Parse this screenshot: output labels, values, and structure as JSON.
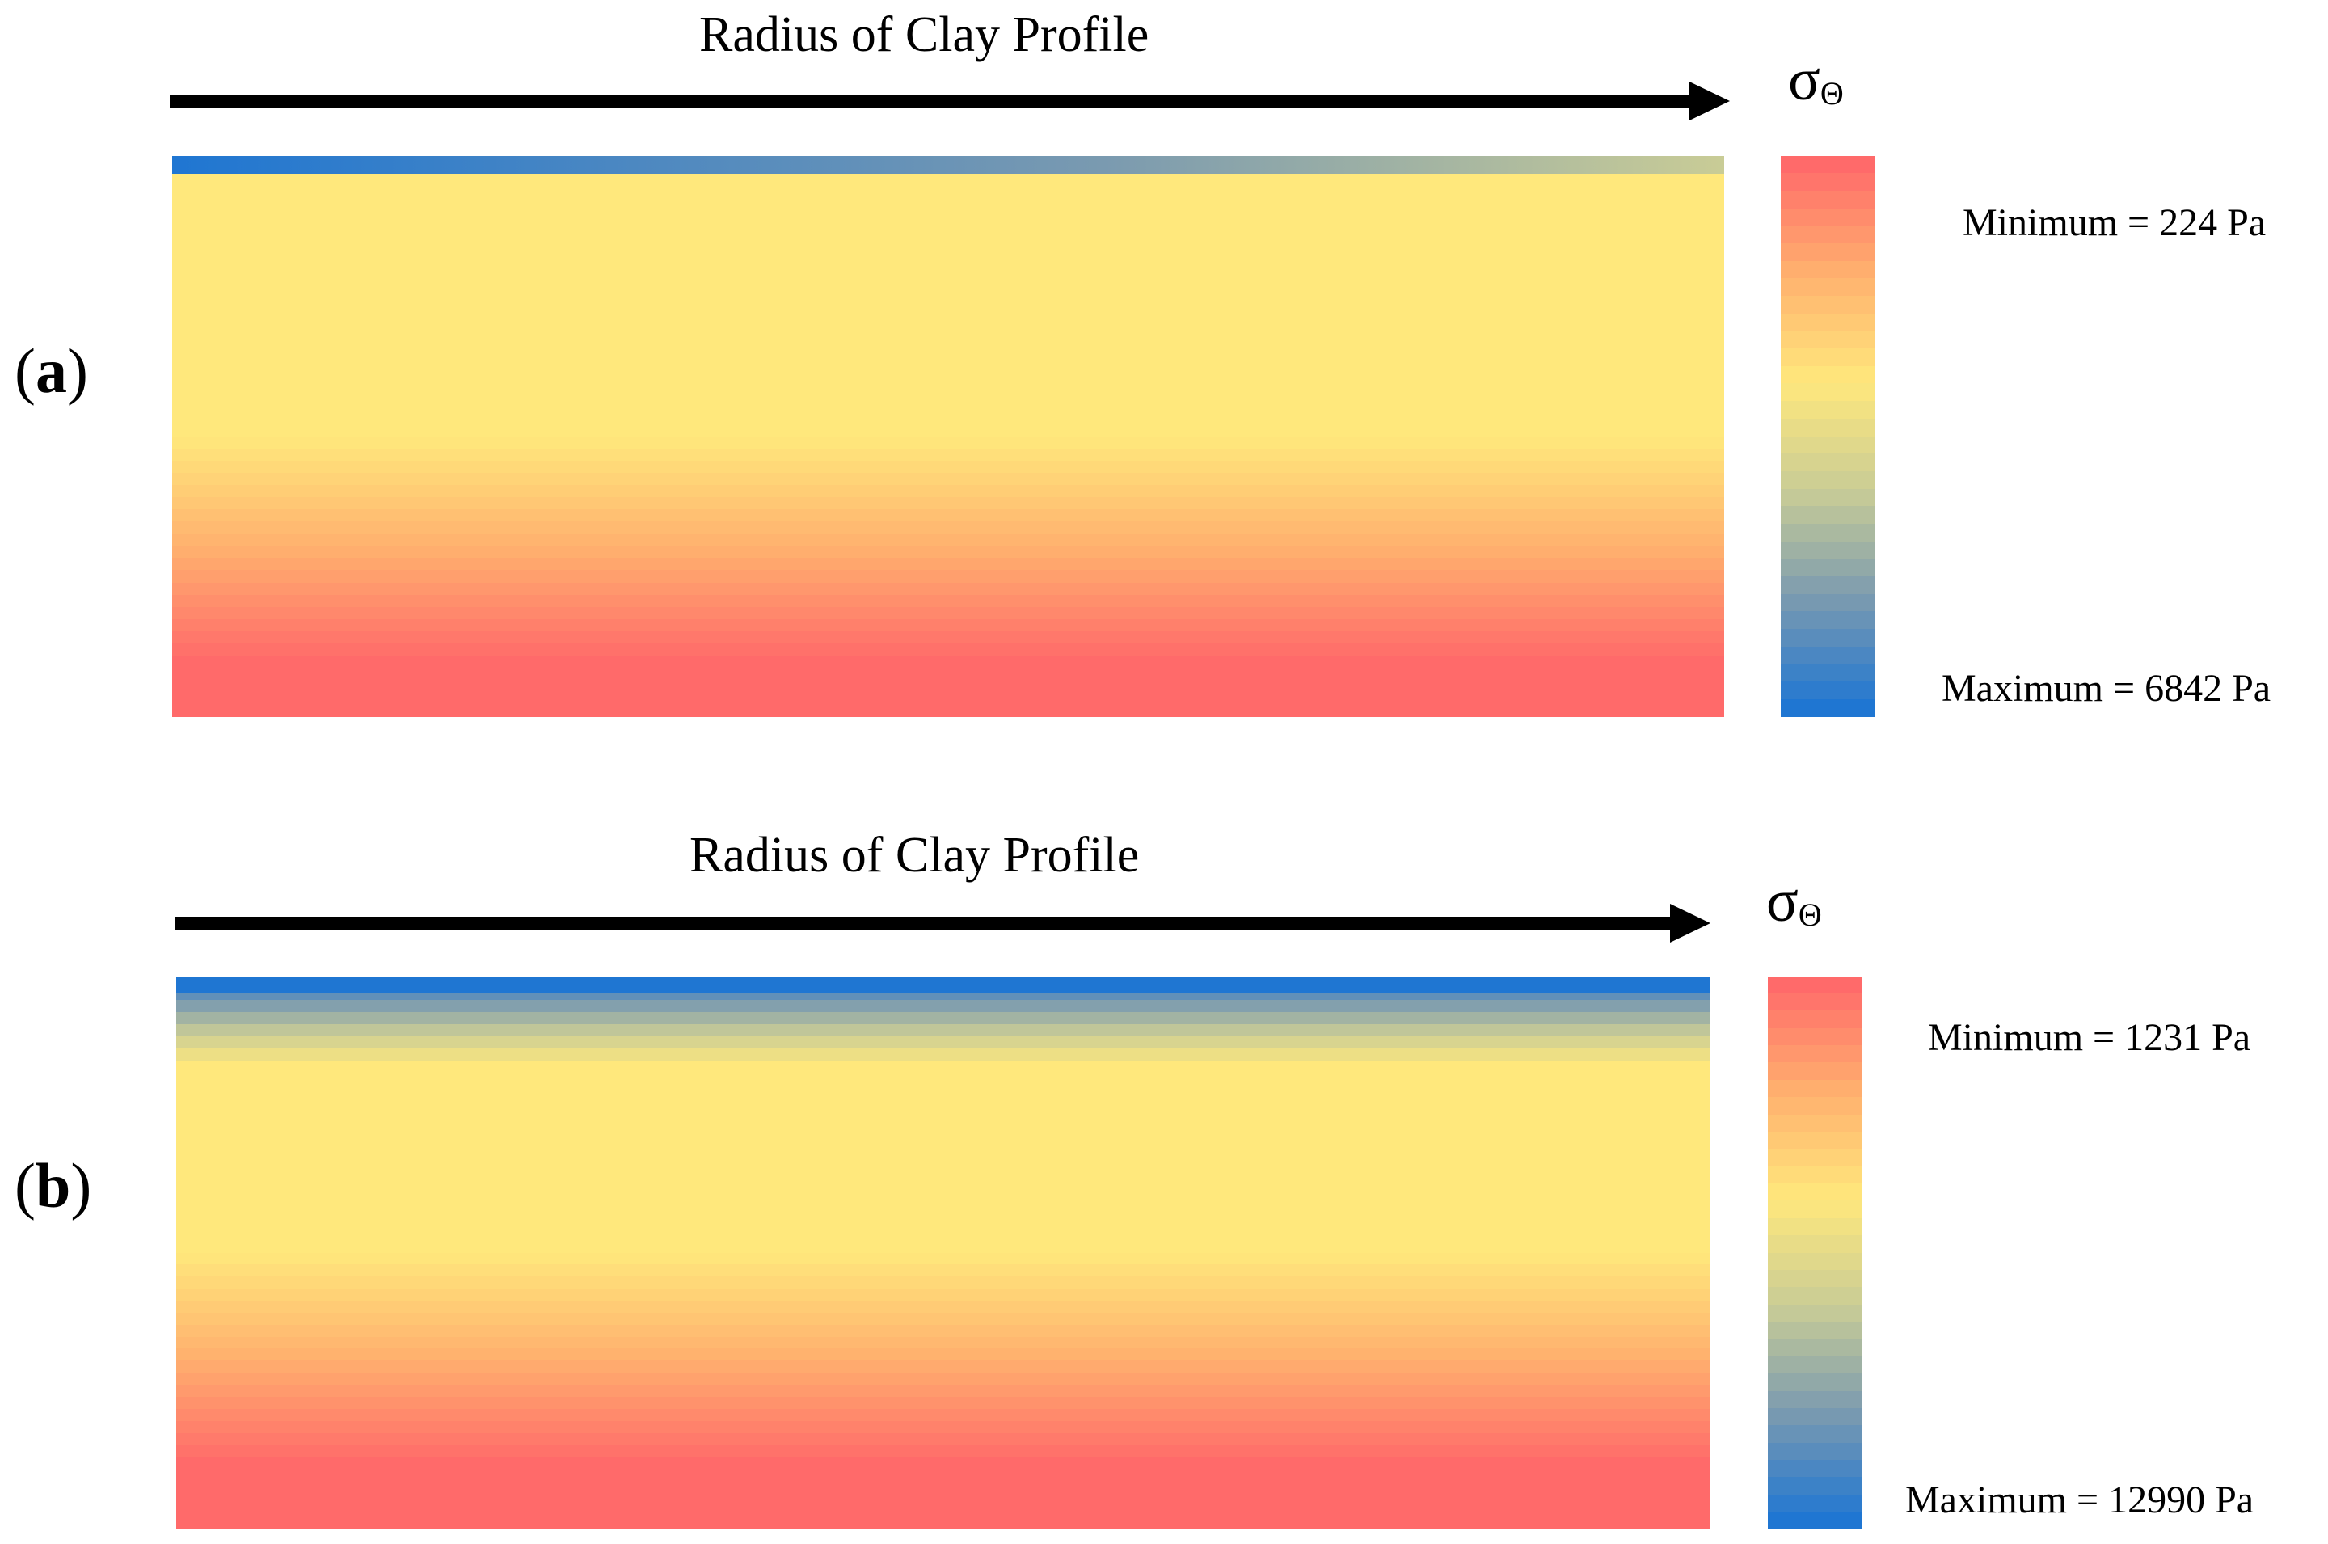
{
  "colors": {
    "low_blue": "#1f76d2",
    "mid_yellow": "#ffe87c",
    "high_red": "#ff6a6a",
    "arrow": "#000000",
    "text": "#000000",
    "background": "#ffffff"
  },
  "colormap_stops": [
    "#1f76d2",
    "#7a9ab0",
    "#c9cc96",
    "#ffe87c",
    "#ffb06e",
    "#ff6a6a"
  ],
  "panels": [
    {
      "id": "a",
      "label_open": "(",
      "label_letter": "a",
      "label_close": ")",
      "axis_title": "Radius of Clay Profile",
      "stress_symbol": "σ",
      "stress_subscript": "Θ",
      "minimum_label": "Minimum = 224 Pa",
      "maximum_label": "Maximum = 6842 Pa",
      "minimum_pa": 224,
      "maximum_pa": 6842
    },
    {
      "id": "b",
      "label_open": "(",
      "label_letter": "b",
      "label_close": ")",
      "axis_title": "Radius of Clay Profile",
      "stress_symbol": "σ",
      "stress_subscript": "Θ",
      "minimum_label": "Minimum = 1231 Pa",
      "maximum_label": "Maximum = 12990 Pa",
      "minimum_pa": 1231,
      "maximum_pa": 12990
    }
  ]
}
